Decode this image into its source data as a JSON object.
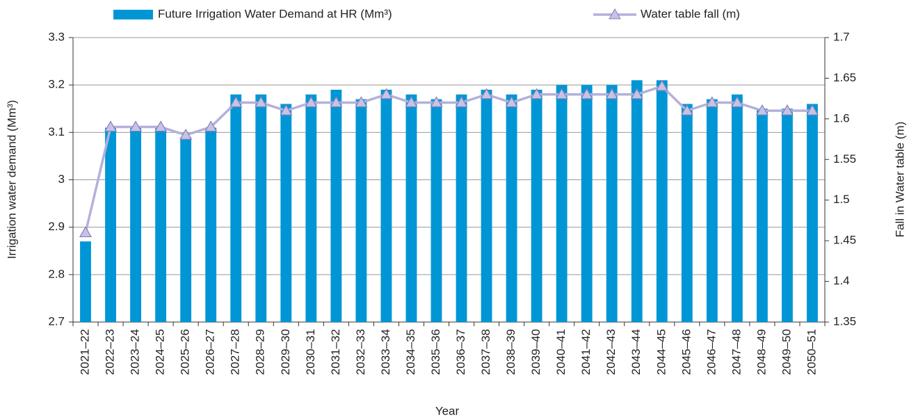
{
  "chart_data": {
    "type": "bar",
    "x_label": "Year",
    "y_label": "Irrigation water demand (Mm³)",
    "y2_label": "Fall in Water table (m)",
    "categories": [
      "2021–22",
      "2022–23",
      "2023–24",
      "2024–25",
      "2025–26",
      "2026–27",
      "2027–28",
      "2028–29",
      "2029–30",
      "2030–31",
      "2031–32",
      "2032–33",
      "2033–34",
      "2034–35",
      "2035–36",
      "2036–37",
      "2037–38",
      "2038–39",
      "2039–40",
      "2040–41",
      "2041–42",
      "2042–43",
      "2043–44",
      "2044–45",
      "2045–46",
      "2046–47",
      "2047–48",
      "2048–49",
      "2049–50",
      "2050–51"
    ],
    "series": [
      {
        "name": "Future Irrigation Water Demand at HR (Mm³)",
        "type": "bar",
        "color": "#0096d6",
        "values": [
          2.87,
          3.11,
          3.11,
          3.11,
          3.09,
          3.11,
          3.18,
          3.18,
          3.16,
          3.18,
          3.19,
          3.17,
          3.19,
          3.18,
          3.17,
          3.18,
          3.19,
          3.18,
          3.19,
          3.2,
          3.2,
          3.2,
          3.21,
          3.21,
          3.16,
          3.17,
          3.18,
          3.15,
          3.15,
          3.16
        ]
      },
      {
        "name": "Water table fall (m)",
        "type": "line",
        "axis": "y2",
        "color": "#b3b0dc",
        "values": [
          1.46,
          1.59,
          1.59,
          1.59,
          1.58,
          1.59,
          1.62,
          1.62,
          1.61,
          1.62,
          1.62,
          1.62,
          1.63,
          1.62,
          1.62,
          1.62,
          1.63,
          1.62,
          1.63,
          1.63,
          1.63,
          1.63,
          1.63,
          1.64,
          1.61,
          1.62,
          1.62,
          1.61,
          1.61,
          1.61
        ]
      }
    ],
    "ylim": [
      2.7,
      3.3
    ],
    "yticks": [
      2.7,
      2.8,
      2.9,
      3,
      3.1,
      3.2,
      3.3
    ],
    "y2lim": [
      1.35,
      1.7
    ],
    "y2ticks": [
      1.35,
      1.4,
      1.45,
      1.5,
      1.55,
      1.6,
      1.65,
      1.7
    ],
    "grid": true,
    "legend": "top"
  }
}
